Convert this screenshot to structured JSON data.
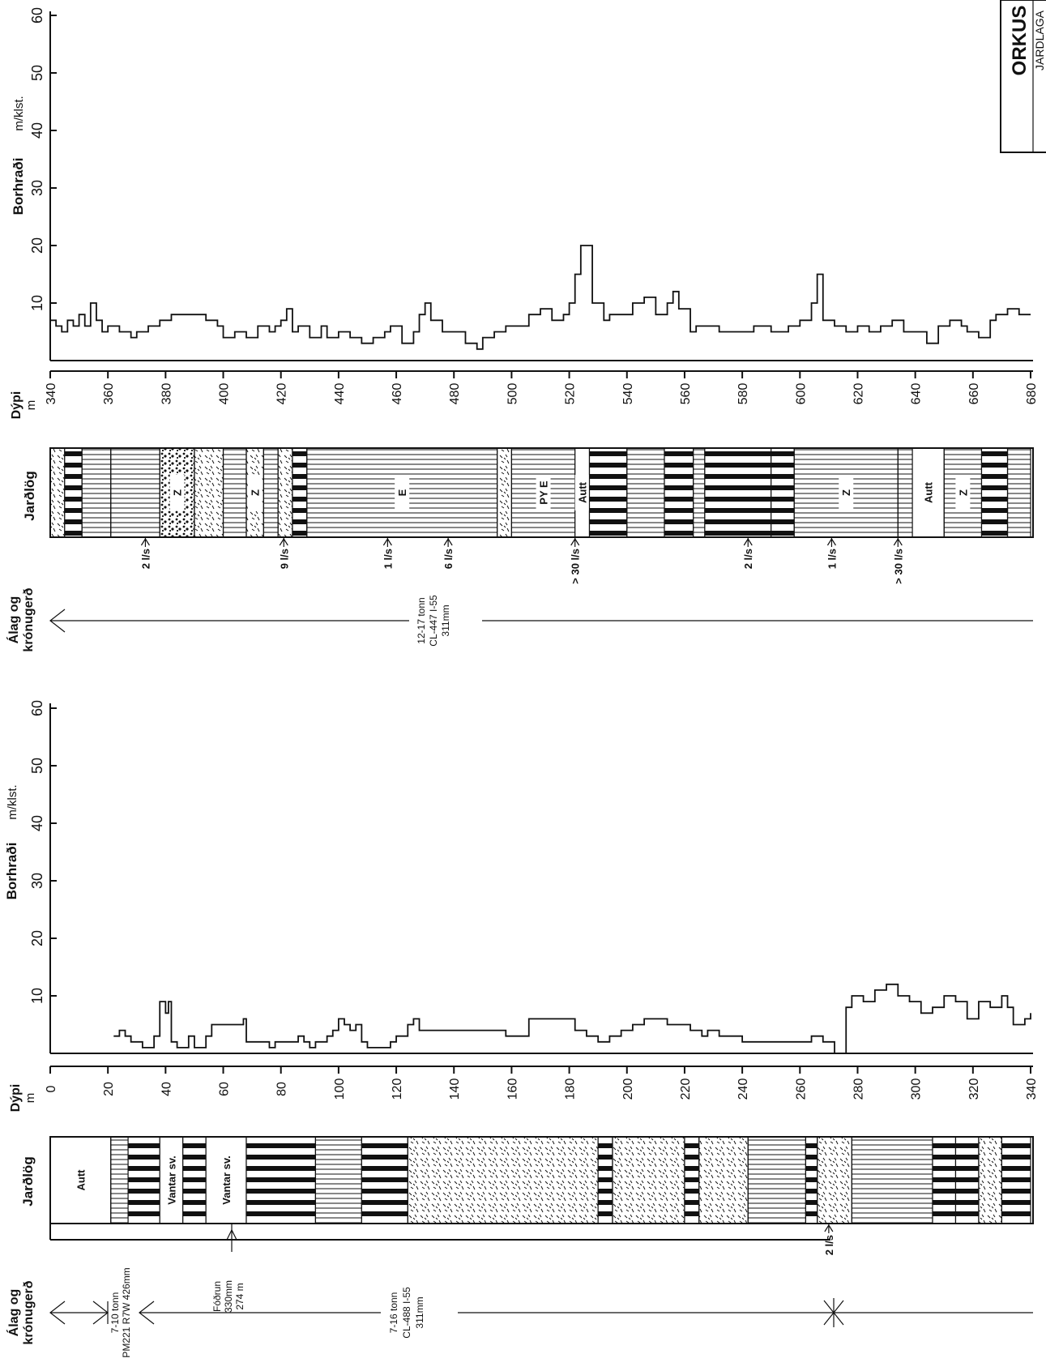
{
  "corner_title": "ORKUS",
  "corner_subtitle": "JARDLAGA",
  "upper": {
    "rate_label": "Borhraði",
    "rate_unit": "m/klst.",
    "depth_label": "Dýpi",
    "depth_unit": "m",
    "lith_label": "Jarðlög",
    "casing_label_1": "Álag og",
    "casing_label_2": "krónugerð",
    "rate_ticks": [
      "10",
      "20",
      "30",
      "40",
      "50",
      "60"
    ],
    "depth_ticks": [
      "340",
      "360",
      "380",
      "400",
      "420",
      "440",
      "460",
      "480",
      "500",
      "520",
      "540",
      "560",
      "580",
      "600",
      "620",
      "640",
      "660",
      "680"
    ],
    "units": [
      {
        "from": 340,
        "to": 345,
        "pattern": "tuff",
        "label": ""
      },
      {
        "from": 345,
        "to": 351,
        "pattern": "blocks",
        "label": ""
      },
      {
        "from": 351,
        "to": 361,
        "pattern": "lines",
        "label": ""
      },
      {
        "from": 361,
        "to": 378,
        "pattern": "lines",
        "label": ""
      },
      {
        "from": 378,
        "to": 390,
        "pattern": "breccia",
        "label": "Z"
      },
      {
        "from": 390,
        "to": 400,
        "pattern": "tuff",
        "label": ""
      },
      {
        "from": 400,
        "to": 408,
        "pattern": "lines",
        "label": ""
      },
      {
        "from": 408,
        "to": 414,
        "pattern": "tuff",
        "label": "Z"
      },
      {
        "from": 414,
        "to": 419,
        "pattern": "lines",
        "label": ""
      },
      {
        "from": 419,
        "to": 424,
        "pattern": "tuff",
        "label": ""
      },
      {
        "from": 424,
        "to": 429,
        "pattern": "blocks",
        "label": ""
      },
      {
        "from": 429,
        "to": 495,
        "pattern": "lines",
        "label": "E"
      },
      {
        "from": 495,
        "to": 500,
        "pattern": "tuff",
        "label": ""
      },
      {
        "from": 500,
        "to": 522,
        "pattern": "lines",
        "label": "PY E"
      },
      {
        "from": 522,
        "to": 527,
        "pattern": "blank",
        "label": "Autt"
      },
      {
        "from": 527,
        "to": 540,
        "pattern": "blocks",
        "label": ""
      },
      {
        "from": 540,
        "to": 553,
        "pattern": "lines",
        "label": ""
      },
      {
        "from": 553,
        "to": 563,
        "pattern": "blocks",
        "label": ""
      },
      {
        "from": 563,
        "to": 567,
        "pattern": "lines",
        "label": ""
      },
      {
        "from": 567,
        "to": 590,
        "pattern": "blocks",
        "label": ""
      },
      {
        "from": 590,
        "to": 598,
        "pattern": "blocks",
        "label": ""
      },
      {
        "from": 598,
        "to": 634,
        "pattern": "lines",
        "label": "Z"
      },
      {
        "from": 634,
        "to": 639,
        "pattern": "lines",
        "label": ""
      },
      {
        "from": 639,
        "to": 650,
        "pattern": "blank",
        "label": "Autt"
      },
      {
        "from": 650,
        "to": 663,
        "pattern": "lines",
        "label": "Z"
      },
      {
        "from": 663,
        "to": 672,
        "pattern": "blocks",
        "label": ""
      },
      {
        "from": 672,
        "to": 680,
        "pattern": "lines",
        "label": ""
      }
    ],
    "flows": [
      {
        "depth": 373,
        "text": "2 l/s"
      },
      {
        "depth": 421,
        "text": "9 l/s"
      },
      {
        "depth": 457,
        "text": "1 l/s"
      },
      {
        "depth": 478,
        "text": "6 l/s"
      },
      {
        "depth": 522,
        "text": "> 30 l/s"
      },
      {
        "depth": 582,
        "text": "2 l/s"
      },
      {
        "depth": 611,
        "text": "1 l/s"
      },
      {
        "depth": 634,
        "text": "> 30 l/s"
      }
    ],
    "bit_line1": "12-17 tonn",
    "bit_line2": "CL-447 I-55",
    "bit_line3": "311mm",
    "rate_data": [
      [
        340,
        7
      ],
      [
        342,
        6
      ],
      [
        344,
        5
      ],
      [
        346,
        7
      ],
      [
        348,
        6
      ],
      [
        350,
        8
      ],
      [
        352,
        6
      ],
      [
        354,
        10
      ],
      [
        356,
        7
      ],
      [
        358,
        5
      ],
      [
        360,
        6
      ],
      [
        364,
        5
      ],
      [
        368,
        4
      ],
      [
        370,
        5
      ],
      [
        374,
        6
      ],
      [
        378,
        7
      ],
      [
        382,
        8
      ],
      [
        386,
        8
      ],
      [
        390,
        8
      ],
      [
        394,
        7
      ],
      [
        398,
        6
      ],
      [
        400,
        4
      ],
      [
        404,
        5
      ],
      [
        408,
        4
      ],
      [
        412,
        6
      ],
      [
        416,
        5
      ],
      [
        418,
        6
      ],
      [
        420,
        7
      ],
      [
        422,
        9
      ],
      [
        424,
        5
      ],
      [
        426,
        6
      ],
      [
        430,
        4
      ],
      [
        434,
        6
      ],
      [
        436,
        4
      ],
      [
        440,
        5
      ],
      [
        444,
        4
      ],
      [
        448,
        3
      ],
      [
        452,
        4
      ],
      [
        456,
        5
      ],
      [
        458,
        6
      ],
      [
        462,
        3
      ],
      [
        466,
        5
      ],
      [
        468,
        8
      ],
      [
        470,
        10
      ],
      [
        472,
        7
      ],
      [
        476,
        5
      ],
      [
        480,
        5
      ],
      [
        484,
        3
      ],
      [
        488,
        2
      ],
      [
        490,
        4
      ],
      [
        494,
        5
      ],
      [
        498,
        6
      ],
      [
        502,
        6
      ],
      [
        506,
        8
      ],
      [
        510,
        9
      ],
      [
        514,
        7
      ],
      [
        518,
        8
      ],
      [
        520,
        10
      ],
      [
        522,
        15
      ],
      [
        524,
        20
      ],
      [
        526,
        20
      ],
      [
        528,
        10
      ],
      [
        532,
        7
      ],
      [
        534,
        8
      ],
      [
        538,
        8
      ],
      [
        542,
        10
      ],
      [
        546,
        11
      ],
      [
        550,
        8
      ],
      [
        554,
        10
      ],
      [
        556,
        12
      ],
      [
        558,
        9
      ],
      [
        562,
        5
      ],
      [
        564,
        6
      ],
      [
        568,
        6
      ],
      [
        572,
        5
      ],
      [
        578,
        5
      ],
      [
        584,
        6
      ],
      [
        590,
        5
      ],
      [
        596,
        6
      ],
      [
        600,
        7
      ],
      [
        604,
        10
      ],
      [
        606,
        15
      ],
      [
        608,
        7
      ],
      [
        612,
        6
      ],
      [
        616,
        5
      ],
      [
        620,
        6
      ],
      [
        624,
        5
      ],
      [
        628,
        6
      ],
      [
        632,
        7
      ],
      [
        636,
        5
      ],
      [
        640,
        5
      ],
      [
        644,
        3
      ],
      [
        648,
        6
      ],
      [
        652,
        7
      ],
      [
        656,
        6
      ],
      [
        658,
        5
      ],
      [
        662,
        4
      ],
      [
        666,
        7
      ],
      [
        668,
        8
      ],
      [
        672,
        9
      ],
      [
        676,
        8
      ],
      [
        680,
        8
      ]
    ]
  },
  "lower": {
    "rate_label": "Borhraði",
    "rate_unit": "m/klst.",
    "depth_label": "Dýpi",
    "depth_unit": "m",
    "lith_label": "Jarðlög",
    "casing_label_1": "Álag og",
    "casing_label_2": "krónugerð",
    "rate_ticks": [
      "10",
      "20",
      "30",
      "40",
      "50",
      "60"
    ],
    "depth_ticks": [
      "0",
      "20",
      "40",
      "60",
      "80",
      "100",
      "120",
      "140",
      "160",
      "180",
      "200",
      "220",
      "240",
      "260",
      "280",
      "300",
      "320",
      "340"
    ],
    "units": [
      {
        "from": 0,
        "to": 21,
        "pattern": "blank",
        "label": "Autt"
      },
      {
        "from": 21,
        "to": 27,
        "pattern": "lines",
        "label": ""
      },
      {
        "from": 27,
        "to": 38,
        "pattern": "blocks",
        "label": ""
      },
      {
        "from": 38,
        "to": 46,
        "pattern": "blank",
        "label": "Vantar sv."
      },
      {
        "from": 46,
        "to": 54,
        "pattern": "blocks",
        "label": ""
      },
      {
        "from": 54,
        "to": 68,
        "pattern": "blank",
        "label": "Vantar sv."
      },
      {
        "from": 68,
        "to": 92,
        "pattern": "blocks",
        "label": ""
      },
      {
        "from": 92,
        "to": 108,
        "pattern": "lines",
        "label": ""
      },
      {
        "from": 108,
        "to": 124,
        "pattern": "blocks",
        "label": ""
      },
      {
        "from": 124,
        "to": 190,
        "pattern": "tuff",
        "label": ""
      },
      {
        "from": 190,
        "to": 195,
        "pattern": "blocks",
        "label": ""
      },
      {
        "from": 195,
        "to": 220,
        "pattern": "tuff",
        "label": ""
      },
      {
        "from": 220,
        "to": 225,
        "pattern": "blocks",
        "label": ""
      },
      {
        "from": 225,
        "to": 242,
        "pattern": "tuff",
        "label": ""
      },
      {
        "from": 242,
        "to": 262,
        "pattern": "lines",
        "label": ""
      },
      {
        "from": 262,
        "to": 266,
        "pattern": "blocks",
        "label": ""
      },
      {
        "from": 266,
        "to": 278,
        "pattern": "tuff",
        "label": ""
      },
      {
        "from": 278,
        "to": 306,
        "pattern": "lines",
        "label": ""
      },
      {
        "from": 306,
        "to": 314,
        "pattern": "blocks",
        "label": ""
      },
      {
        "from": 314,
        "to": 322,
        "pattern": "blocks",
        "label": ""
      },
      {
        "from": 322,
        "to": 330,
        "pattern": "tuff",
        "label": ""
      },
      {
        "from": 330,
        "to": 340,
        "pattern": "blocks",
        "label": ""
      }
    ],
    "flows": [
      {
        "depth": 270,
        "text": "2 l/s"
      }
    ],
    "bit1_line1": "7-10 tonn",
    "bit1_line2": "PM221 R7W 426mm",
    "casing_text_1": "Fóðrun",
    "casing_text_2": "330mm",
    "casing_text_3": "274 m",
    "bit2_line1": "7-16 tonn",
    "bit2_line2": "CL-488 I-55",
    "bit2_line3": "311mm",
    "rate_data": [
      [
        22,
        3
      ],
      [
        24,
        4
      ],
      [
        26,
        3
      ],
      [
        28,
        2
      ],
      [
        30,
        2
      ],
      [
        32,
        1
      ],
      [
        36,
        3
      ],
      [
        38,
        9
      ],
      [
        40,
        7
      ],
      [
        41,
        9
      ],
      [
        42,
        2
      ],
      [
        44,
        1
      ],
      [
        48,
        3
      ],
      [
        50,
        1
      ],
      [
        54,
        3
      ],
      [
        56,
        5
      ],
      [
        60,
        5
      ],
      [
        64,
        5
      ],
      [
        67,
        6
      ],
      [
        68,
        2
      ],
      [
        74,
        2
      ],
      [
        76,
        1
      ],
      [
        78,
        2
      ],
      [
        82,
        2
      ],
      [
        86,
        3
      ],
      [
        88,
        2
      ],
      [
        90,
        1
      ],
      [
        92,
        2
      ],
      [
        96,
        3
      ],
      [
        98,
        4
      ],
      [
        100,
        6
      ],
      [
        102,
        5
      ],
      [
        104,
        4
      ],
      [
        106,
        5
      ],
      [
        108,
        2
      ],
      [
        110,
        1
      ],
      [
        114,
        1
      ],
      [
        118,
        2
      ],
      [
        120,
        3
      ],
      [
        124,
        5
      ],
      [
        126,
        6
      ],
      [
        128,
        4
      ],
      [
        132,
        4
      ],
      [
        140,
        4
      ],
      [
        150,
        4
      ],
      [
        158,
        3
      ],
      [
        164,
        3
      ],
      [
        166,
        6
      ],
      [
        170,
        6
      ],
      [
        176,
        6
      ],
      [
        180,
        6
      ],
      [
        182,
        4
      ],
      [
        186,
        3
      ],
      [
        190,
        2
      ],
      [
        194,
        3
      ],
      [
        198,
        4
      ],
      [
        202,
        5
      ],
      [
        206,
        6
      ],
      [
        210,
        6
      ],
      [
        214,
        5
      ],
      [
        218,
        5
      ],
      [
        222,
        4
      ],
      [
        226,
        3
      ],
      [
        228,
        4
      ],
      [
        232,
        3
      ],
      [
        240,
        2
      ],
      [
        250,
        2
      ],
      [
        258,
        2
      ],
      [
        264,
        3
      ],
      [
        268,
        2
      ],
      [
        272,
        0
      ],
      [
        276,
        8
      ],
      [
        278,
        10
      ],
      [
        282,
        9
      ],
      [
        286,
        11
      ],
      [
        290,
        12
      ],
      [
        294,
        10
      ],
      [
        298,
        9
      ],
      [
        302,
        7
      ],
      [
        306,
        8
      ],
      [
        310,
        10
      ],
      [
        314,
        9
      ],
      [
        318,
        6
      ],
      [
        322,
        9
      ],
      [
        326,
        8
      ],
      [
        330,
        10
      ],
      [
        332,
        8
      ],
      [
        334,
        5
      ],
      [
        338,
        6
      ],
      [
        340,
        7
      ]
    ]
  }
}
